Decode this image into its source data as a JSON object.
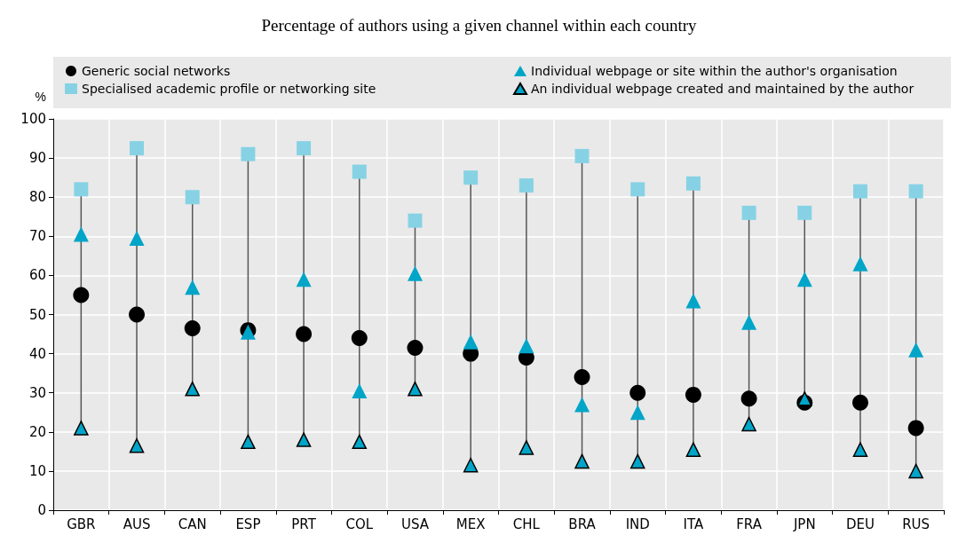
{
  "chart_data": {
    "type": "scatter",
    "title": "Percentage of authors using a given channel within each country",
    "ylabel": "%",
    "categories": [
      "GBR",
      "AUS",
      "CAN",
      "ESP",
      "PRT",
      "COL",
      "USA",
      "MEX",
      "CHL",
      "BRA",
      "IND",
      "ITA",
      "FRA",
      "JPN",
      "DEU",
      "RUS"
    ],
    "series": [
      {
        "name": "Generic social networks",
        "color": "#000000",
        "marker": "circle",
        "values": [
          55,
          50,
          46.5,
          46,
          45,
          44,
          41.5,
          40,
          39,
          34,
          30,
          29.5,
          28.5,
          27.5,
          27.5,
          21
        ]
      },
      {
        "name": "Individual webpage or site within the author's organisation",
        "color": "#00a5c8",
        "marker": "triangle",
        "values": [
          70.5,
          69.5,
          57,
          45.5,
          59,
          30.5,
          60.5,
          43,
          42,
          27,
          25,
          53.5,
          48,
          59,
          63,
          41
        ]
      },
      {
        "name": "Specialised academic profile or networking site",
        "color": "#86d2e4",
        "marker": "square",
        "values": [
          82,
          92.5,
          80,
          91,
          92.5,
          86.5,
          74,
          85,
          83,
          90.5,
          82,
          83.5,
          76,
          76,
          81.5,
          81.5
        ]
      },
      {
        "name": "An individual webpage created and maintained by the author",
        "color": "#00a5c8",
        "marker": "triangle",
        "values": [
          21,
          16.5,
          31,
          17.5,
          18,
          17.5,
          31,
          11.5,
          16,
          12.5,
          12.5,
          15.5,
          22,
          28.5,
          15.5,
          10
        ]
      }
    ],
    "ylim": [
      0,
      100
    ],
    "yticks": [
      0,
      10,
      20,
      30,
      40,
      50,
      60,
      70,
      80,
      90,
      100
    ],
    "grid": true,
    "legend": "top"
  }
}
